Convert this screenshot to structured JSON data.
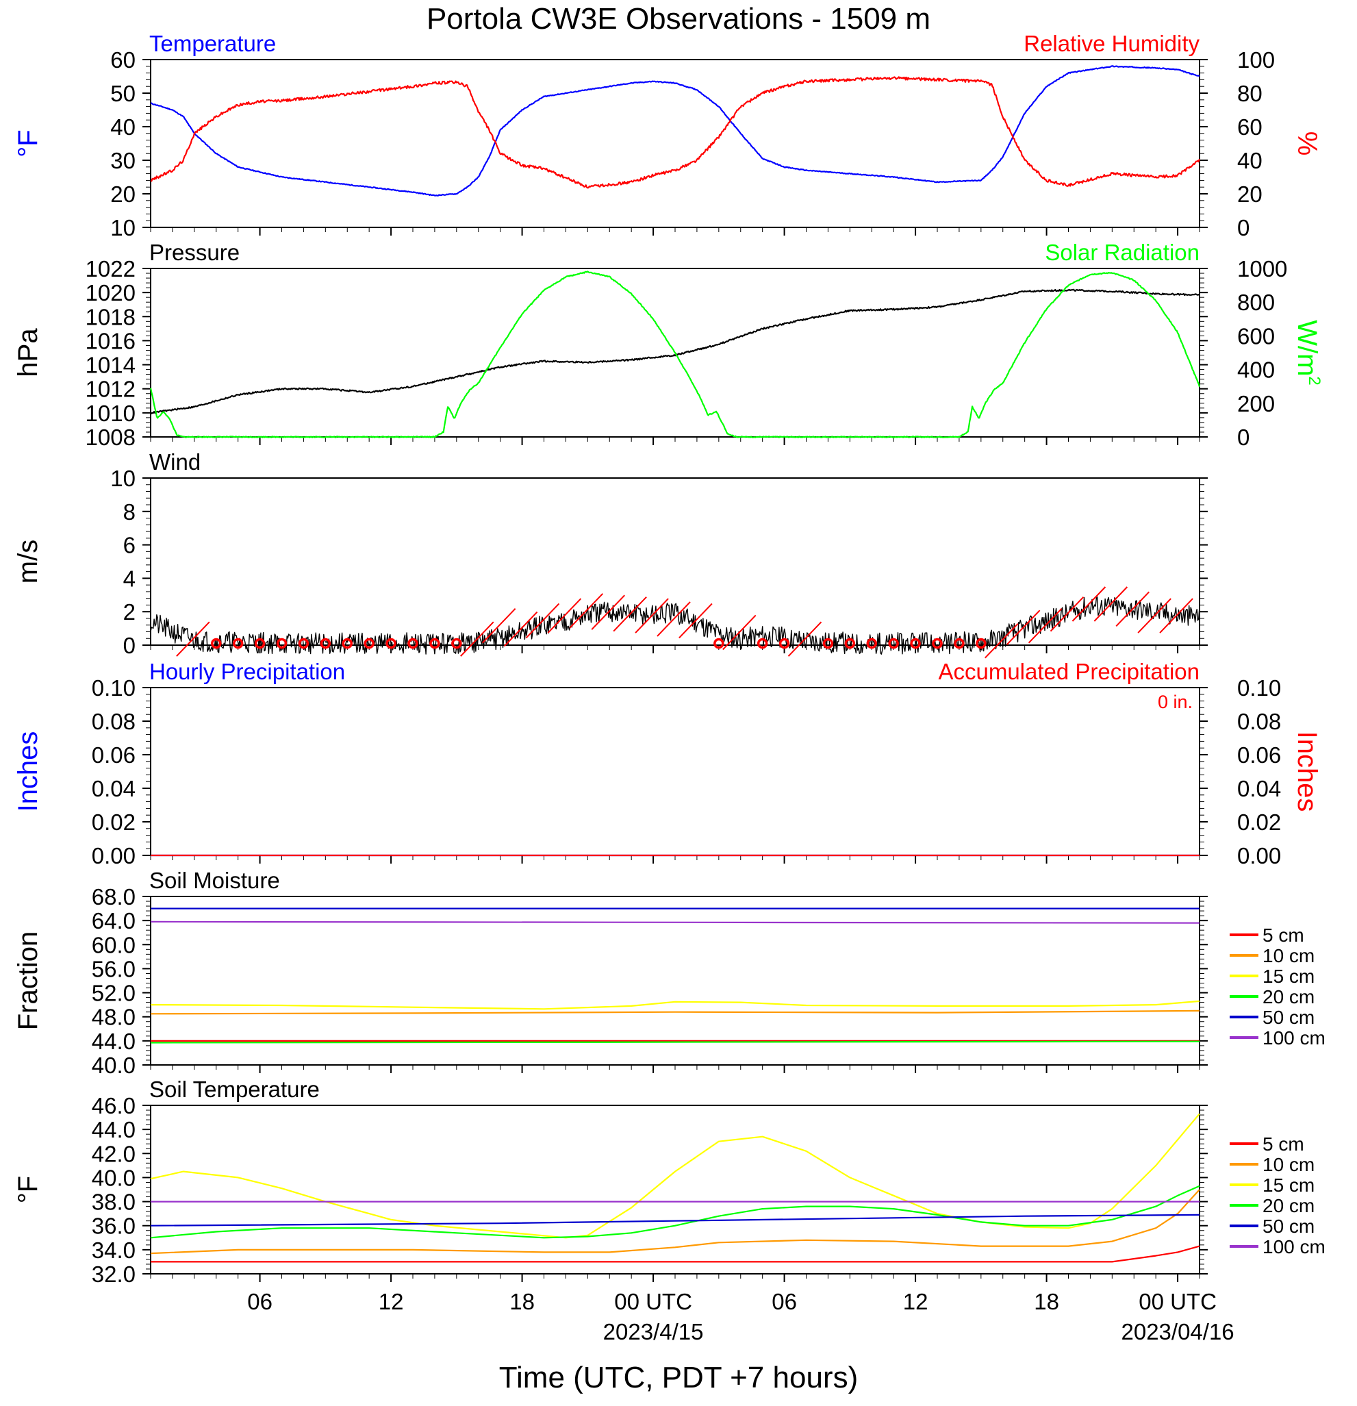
{
  "title": "Portola CW3E Observations - 1509 m",
  "xlabel": "Time (UTC, PDT +7 hours)",
  "colors": {
    "blue": "#0000ff",
    "red": "#ff0000",
    "green": "#00ff00",
    "black": "#000000",
    "orange": "#ff9900",
    "yellow": "#ffff00",
    "navy": "#0000cc",
    "purple": "#9933cc"
  },
  "chart_data": [
    {
      "id": "temperature-rh",
      "type": "line",
      "title_left": "Temperature",
      "title_right": "Relative Humidity",
      "ylabel_left": "°F",
      "ylabel_right": "%",
      "ylim_left": [
        10,
        60
      ],
      "yticks_left": [
        "10",
        "20",
        "30",
        "40",
        "50",
        "60"
      ],
      "ylim_right": [
        0,
        100
      ],
      "yticks_right": [
        "0",
        "20",
        "40",
        "60",
        "80",
        "100"
      ],
      "x_hours": [
        0,
        1,
        1.5,
        2,
        3,
        4,
        5,
        6,
        8,
        10,
        12,
        13,
        14,
        14.5,
        15,
        15.5,
        16,
        17,
        18,
        20,
        22,
        23,
        24,
        25,
        26,
        27,
        28,
        29,
        30,
        32,
        34,
        36,
        38,
        38.5,
        39,
        40,
        41,
        42,
        44,
        46,
        47,
        48
      ],
      "series": [
        {
          "name": "Temperature",
          "axis": "left",
          "color": "blue",
          "values": [
            47,
            45,
            43,
            38,
            32,
            28,
            26.5,
            25,
            23.5,
            22,
            20.5,
            19.5,
            20,
            22,
            25,
            31,
            39,
            45,
            49,
            51,
            53,
            53.5,
            53,
            51,
            46,
            38,
            30.5,
            28,
            27,
            26,
            25,
            23.5,
            24,
            27,
            31,
            44,
            52,
            56,
            58,
            57.5,
            57,
            55
          ]
        },
        {
          "name": "Relative Humidity",
          "axis": "right",
          "color": "red",
          "values": [
            28,
            34,
            40,
            56,
            66,
            73,
            75,
            75.5,
            78,
            81,
            84,
            86,
            86.5,
            84,
            69,
            58,
            44,
            37,
            35,
            24,
            27,
            31,
            34,
            40,
            54,
            72,
            80,
            84,
            87,
            88,
            89,
            88,
            87,
            85,
            66,
            40,
            28,
            25,
            32,
            30,
            31,
            40
          ]
        }
      ]
    },
    {
      "id": "pressure-solar",
      "type": "line",
      "title_left": "Pressure",
      "title_right": "Solar Radiation",
      "ylabel_left": "hPa",
      "ylabel_right": "W/m",
      "ylabel_right_sup": "2",
      "ylim_left": [
        1008,
        1022
      ],
      "yticks_left": [
        "1008",
        "1010",
        "1012",
        "1014",
        "1016",
        "1018",
        "1020",
        "1022"
      ],
      "ylim_right": [
        0,
        1000
      ],
      "yticks_right": [
        "0",
        "200",
        "400",
        "600",
        "800",
        "1000"
      ],
      "series": [
        {
          "name": "Pressure",
          "axis": "left",
          "color": "black",
          "x_hours": [
            0,
            2,
            4,
            6,
            8,
            10,
            12,
            14,
            16,
            18,
            20,
            22,
            24,
            26,
            28,
            30,
            32,
            34,
            36,
            38,
            40,
            42,
            44,
            46,
            48
          ],
          "values": [
            1010,
            1010.5,
            1011.5,
            1012,
            1012,
            1011.7,
            1012.2,
            1013,
            1013.8,
            1014.3,
            1014.2,
            1014.4,
            1014.8,
            1015.7,
            1017,
            1017.8,
            1018.5,
            1018.6,
            1018.8,
            1019.4,
            1020.1,
            1020.2,
            1020.1,
            1019.9,
            1019.8
          ]
        },
        {
          "name": "Solar Radiation",
          "axis": "right",
          "color": "green",
          "x_hours": [
            0,
            0.3,
            0.6,
            0.9,
            1.2,
            1.5,
            13,
            13.4,
            13.6,
            13.9,
            14.2,
            14.6,
            15,
            16,
            17,
            18,
            19,
            20,
            21,
            22,
            23,
            24,
            24.8,
            25.2,
            25.5,
            25.9,
            26.4,
            26.8,
            37,
            37.4,
            37.6,
            37.9,
            38.2,
            38.6,
            39,
            40,
            41,
            42,
            43,
            44,
            45,
            46,
            47,
            48
          ],
          "values": [
            290,
            110,
            150,
            100,
            10,
            0,
            0,
            30,
            180,
            110,
            200,
            280,
            320,
            530,
            730,
            870,
            950,
            980,
            950,
            850,
            700,
            500,
            320,
            220,
            130,
            150,
            20,
            0,
            0,
            30,
            180,
            110,
            200,
            280,
            320,
            560,
            760,
            900,
            965,
            975,
            930,
            810,
            620,
            300
          ]
        }
      ]
    },
    {
      "id": "wind",
      "type": "line",
      "title_left": "Wind",
      "ylabel_left": "m/s",
      "ylim_left": [
        0,
        10
      ],
      "yticks_left": [
        "0",
        "2",
        "4",
        "6",
        "8",
        "10"
      ],
      "series": [
        {
          "name": "Wind",
          "axis": "left",
          "color": "black",
          "x_hours": [
            0,
            0.5,
            1,
            2,
            3,
            4,
            6,
            8,
            10,
            12,
            14,
            15,
            16,
            17,
            18,
            19,
            20,
            21,
            22,
            23,
            24,
            25,
            26,
            27,
            28,
            30,
            32,
            34,
            36,
            38,
            39,
            40,
            41,
            42,
            43,
            44,
            45,
            46,
            47,
            48
          ],
          "values": [
            1.4,
            1.1,
            0.8,
            0.3,
            0.2,
            0.2,
            0.1,
            0.1,
            0.1,
            0.1,
            0.1,
            0.2,
            0.4,
            0.8,
            1.2,
            1.5,
            1.8,
            2.0,
            1.9,
            1.8,
            1.9,
            1.4,
            0.7,
            0.4,
            0.6,
            0.3,
            0.1,
            0.1,
            0.1,
            0.2,
            0.5,
            1.0,
            1.4,
            1.9,
            2.4,
            2.3,
            2.2,
            2.0,
            1.8,
            1.7
          ]
        }
      ],
      "barbs_hours": [
        2,
        3,
        4,
        5,
        6,
        7,
        8,
        9,
        10,
        11,
        12,
        13,
        14,
        15,
        16,
        17,
        18,
        19,
        20,
        21,
        22,
        23,
        24,
        25,
        26,
        27,
        28,
        29,
        30,
        31,
        32,
        33,
        34,
        35,
        36,
        37,
        38,
        39,
        40,
        41,
        42,
        43,
        44,
        45,
        46,
        47
      ],
      "barb_speed": [
        0.4,
        0.05,
        0.05,
        0.05,
        0.2,
        0.05,
        0.05,
        0.2,
        0.25,
        0.05,
        0.05,
        0.05,
        0.05,
        0.4,
        1.2,
        1.0,
        1.5,
        1.8,
        2.1,
        2.0,
        1.9,
        1.8,
        1.6,
        1.5,
        0.05,
        0.8,
        0.05,
        0.05,
        0.4,
        0.05,
        0.05,
        0.05,
        0.05,
        0.05,
        0.05,
        0.05,
        0.05,
        0.3,
        1.1,
        1.2,
        1.9,
        2.5,
        2.5,
        2.2,
        1.8,
        1.8
      ]
    },
    {
      "id": "precipitation",
      "type": "line",
      "title_left": "Hourly Precipitation",
      "title_right": "Accumulated Precipitation",
      "annotation": "0 in.",
      "ylabel_left": "Inches",
      "ylabel_right": "Inches",
      "ylim_left": [
        0,
        0.1
      ],
      "yticks_left": [
        "0.00",
        "0.02",
        "0.04",
        "0.06",
        "0.08",
        "0.10"
      ],
      "ylim_right": [
        0,
        0.1
      ],
      "yticks_right": [
        "0.00",
        "0.02",
        "0.04",
        "0.06",
        "0.08",
        "0.10"
      ],
      "series": [
        {
          "name": "Hourly Precipitation",
          "axis": "left",
          "color": "blue",
          "x_hours": [
            0,
            48
          ],
          "values": [
            0,
            0
          ]
        },
        {
          "name": "Accumulated Precipitation",
          "axis": "right",
          "color": "red",
          "x_hours": [
            0,
            48
          ],
          "values": [
            0,
            0
          ]
        }
      ]
    },
    {
      "id": "soil-moisture",
      "type": "line",
      "title_left": "Soil Moisture",
      "ylabel_left": "Fraction",
      "ylim_left": [
        40,
        68
      ],
      "yticks_left": [
        "40.0",
        "44.0",
        "48.0",
        "52.0",
        "56.0",
        "60.0",
        "64.0",
        "68.0"
      ],
      "legend": [
        "5 cm",
        "10 cm",
        "15 cm",
        "20 cm",
        "50 cm",
        "100 cm"
      ],
      "series": [
        {
          "name": "5 cm",
          "color": "red",
          "x_hours": [
            0,
            48
          ],
          "values": [
            44.0,
            44.0
          ]
        },
        {
          "name": "10 cm",
          "color": "orange",
          "x_hours": [
            0,
            12,
            24,
            36,
            48
          ],
          "values": [
            48.5,
            48.6,
            48.8,
            48.7,
            49.0
          ]
        },
        {
          "name": "15 cm",
          "color": "yellow",
          "x_hours": [
            0,
            6,
            12,
            18,
            22,
            24,
            27,
            30,
            36,
            42,
            46,
            48
          ],
          "values": [
            50.0,
            49.9,
            49.6,
            49.3,
            49.8,
            50.5,
            50.4,
            49.9,
            49.8,
            49.8,
            50.0,
            50.6
          ]
        },
        {
          "name": "20 cm",
          "color": "green",
          "x_hours": [
            0,
            48
          ],
          "values": [
            43.7,
            43.9
          ]
        },
        {
          "name": "50 cm",
          "color": "navy",
          "x_hours": [
            0,
            48
          ],
          "values": [
            66.0,
            66.0
          ]
        },
        {
          "name": "100 cm",
          "color": "purple",
          "x_hours": [
            0,
            48
          ],
          "values": [
            63.8,
            63.6
          ]
        }
      ]
    },
    {
      "id": "soil-temperature",
      "type": "line",
      "title_left": "Soil Temperature",
      "ylabel_left": "°F",
      "ylim_left": [
        32,
        46
      ],
      "yticks_left": [
        "32.0",
        "34.0",
        "36.0",
        "38.0",
        "40.0",
        "42.0",
        "44.0",
        "46.0"
      ],
      "legend": [
        "5 cm",
        "10 cm",
        "15 cm",
        "20 cm",
        "50 cm",
        "100 cm"
      ],
      "series": [
        {
          "name": "5 cm",
          "color": "red",
          "x_hours": [
            0,
            18,
            30,
            44,
            46,
            47,
            48
          ],
          "values": [
            33.0,
            33.0,
            33.0,
            33.0,
            33.5,
            33.8,
            34.3
          ]
        },
        {
          "name": "10 cm",
          "color": "orange",
          "x_hours": [
            0,
            4,
            12,
            18,
            21,
            24,
            26,
            30,
            34,
            38,
            42,
            44,
            46,
            47,
            48
          ],
          "values": [
            33.7,
            34.0,
            34.0,
            33.8,
            33.8,
            34.2,
            34.6,
            34.8,
            34.7,
            34.3,
            34.3,
            34.7,
            35.8,
            37.0,
            39.0
          ]
        },
        {
          "name": "15 cm",
          "color": "yellow",
          "x_hours": [
            0,
            1.5,
            4,
            6,
            8,
            10,
            11,
            13,
            16,
            19,
            20,
            22,
            24,
            26,
            28,
            30,
            32,
            34,
            36,
            38,
            40,
            42,
            43,
            44,
            46,
            48
          ],
          "values": [
            39.9,
            40.5,
            40.0,
            39.1,
            38.0,
            37.0,
            36.5,
            36.0,
            35.5,
            35.0,
            35.2,
            37.5,
            40.5,
            43.0,
            43.4,
            42.2,
            40.0,
            38.5,
            37.0,
            36.3,
            35.9,
            35.8,
            36.2,
            37.4,
            41.0,
            45.3
          ]
        },
        {
          "name": "20 cm",
          "color": "green",
          "x_hours": [
            0,
            3,
            6,
            10,
            14,
            18,
            20,
            22,
            24,
            26,
            28,
            30,
            32,
            34,
            36,
            38,
            40,
            42,
            44,
            46,
            47,
            48
          ],
          "values": [
            35.0,
            35.5,
            35.8,
            35.8,
            35.4,
            35.0,
            35.1,
            35.4,
            36.0,
            36.8,
            37.4,
            37.6,
            37.6,
            37.4,
            36.9,
            36.3,
            36.0,
            36.0,
            36.5,
            37.6,
            38.5,
            39.3
          ]
        },
        {
          "name": "50 cm",
          "color": "navy",
          "x_hours": [
            0,
            16,
            24,
            32,
            40,
            48
          ],
          "values": [
            36.0,
            36.2,
            36.4,
            36.6,
            36.8,
            36.9
          ]
        },
        {
          "name": "100 cm",
          "color": "purple",
          "x_hours": [
            0,
            48
          ],
          "values": [
            38.0,
            38.0
          ]
        }
      ]
    }
  ],
  "x_axis": {
    "range_hours": [
      0,
      48
    ],
    "ticks": [
      {
        "hour": 5,
        "label": "06"
      },
      {
        "hour": 11,
        "label": "12"
      },
      {
        "hour": 17,
        "label": "18"
      },
      {
        "hour": 23,
        "label": "00 UTC",
        "sublabel": "2023/4/15"
      },
      {
        "hour": 29,
        "label": "06"
      },
      {
        "hour": 35,
        "label": "12"
      },
      {
        "hour": 41,
        "label": "18"
      },
      {
        "hour": 47,
        "label": "00 UTC",
        "sublabel": "2023/04/16"
      }
    ]
  }
}
